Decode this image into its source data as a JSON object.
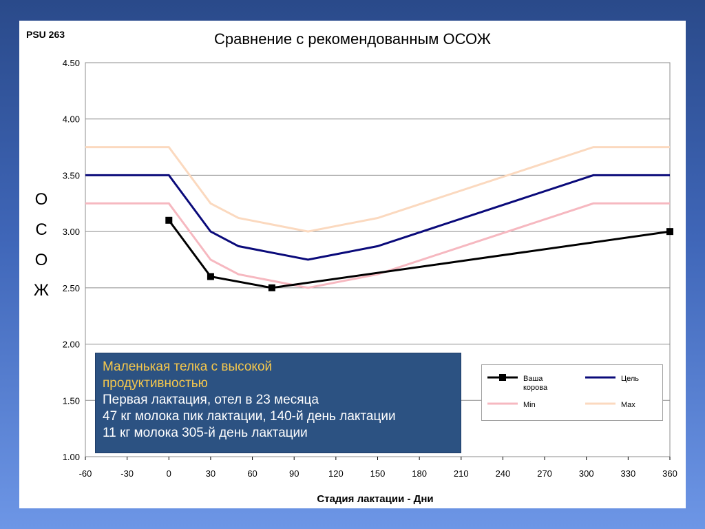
{
  "slide": {
    "tag": "PSU 263"
  },
  "info_box": {
    "highlight_lines": [
      "Маленькая телка с высокой",
      "продуктивностью"
    ],
    "lines": [
      "Первая лактация, отел в 23 месяца",
      "47 кг молока пик лактации, 140-й день лактации",
      "11 кг молока 305-й день лактации"
    ],
    "background": "#2c5282",
    "highlight_color": "#f6c84c"
  },
  "chart_data": {
    "type": "line",
    "title": "Сравнение с рекомендованным ОСОЖ",
    "xlabel": "Стадия лактации - Дни",
    "ylabel_letters": [
      "О",
      "С",
      "О",
      "Ж"
    ],
    "xlim": [
      -60,
      360
    ],
    "ylim": [
      1.0,
      4.5
    ],
    "x_ticks": [
      -60,
      -30,
      0,
      30,
      60,
      90,
      120,
      150,
      180,
      210,
      240,
      270,
      300,
      330,
      360
    ],
    "y_ticks": [
      "1.00",
      "1.50",
      "2.00",
      "2.50",
      "3.00",
      "3.50",
      "4.00",
      "4.50"
    ],
    "y_tick_values": [
      1.0,
      1.5,
      2.0,
      2.5,
      3.0,
      3.5,
      4.0,
      4.5
    ],
    "grid": "horizontal",
    "legend_placement": "bottom-right",
    "series": [
      {
        "name": "Ваша корова",
        "color": "#000000",
        "marker": "square",
        "points": [
          [
            0,
            3.1
          ],
          [
            30,
            2.6
          ],
          [
            74,
            2.5
          ],
          [
            360,
            3.0
          ]
        ]
      },
      {
        "name": "Цель",
        "color": "#0a0a7a",
        "marker": "none",
        "points": [
          [
            -60,
            3.5
          ],
          [
            0,
            3.5
          ],
          [
            30,
            3.0
          ],
          [
            50,
            2.87
          ],
          [
            100,
            2.75
          ],
          [
            150,
            2.87
          ],
          [
            305,
            3.5
          ],
          [
            360,
            3.5
          ]
        ]
      },
      {
        "name": "Min",
        "color": "#f6b8c0",
        "marker": "none",
        "points": [
          [
            -60,
            3.25
          ],
          [
            0,
            3.25
          ],
          [
            30,
            2.75
          ],
          [
            50,
            2.62
          ],
          [
            100,
            2.5
          ],
          [
            150,
            2.62
          ],
          [
            305,
            3.25
          ],
          [
            360,
            3.25
          ]
        ]
      },
      {
        "name": "Max",
        "color": "#fbd9bf",
        "marker": "none",
        "points": [
          [
            -60,
            3.75
          ],
          [
            0,
            3.75
          ],
          [
            30,
            3.25
          ],
          [
            50,
            3.12
          ],
          [
            100,
            3.0
          ],
          [
            150,
            3.12
          ],
          [
            305,
            3.75
          ],
          [
            360,
            3.75
          ]
        ]
      }
    ]
  }
}
